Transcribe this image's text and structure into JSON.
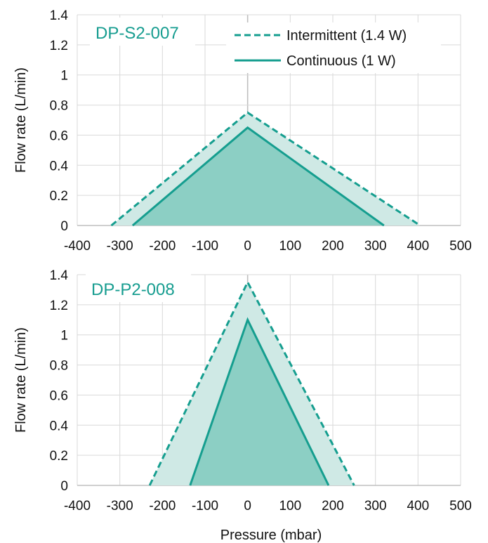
{
  "chart_data": [
    {
      "type": "area",
      "panel_label": "DP-S2-007",
      "ylabel": "Flow rate (L/min)",
      "xlabel": "",
      "xlim": [
        -400,
        500
      ],
      "ylim": [
        0,
        1.4
      ],
      "x_ticks": [
        "-400",
        "-300",
        "-200",
        "-100",
        "0",
        "100",
        "200",
        "300",
        "400",
        "500"
      ],
      "y_ticks": [
        "0",
        "0.2",
        "0.4",
        "0.6",
        "0.8",
        "1",
        "1.2",
        "1.4"
      ],
      "grid": true,
      "legend": {
        "placement": "top-right"
      },
      "series": [
        {
          "name": "Intermittent (1.4 W)",
          "style": "dashed",
          "points": [
            [
              -320,
              0
            ],
            [
              0,
              0.75
            ],
            [
              405,
              0
            ]
          ]
        },
        {
          "name": "Continuous (1 W)",
          "style": "solid",
          "points": [
            [
              -270,
              0
            ],
            [
              0,
              0.65
            ],
            [
              320,
              0
            ]
          ]
        }
      ]
    },
    {
      "type": "area",
      "panel_label": "DP-P2-008",
      "ylabel": "Flow rate (L/min)",
      "xlabel": "Pressure (mbar)",
      "xlim": [
        -400,
        500
      ],
      "ylim": [
        0,
        1.4
      ],
      "x_ticks": [
        "-400",
        "-300",
        "-200",
        "-100",
        "0",
        "100",
        "200",
        "300",
        "400",
        "500"
      ],
      "y_ticks": [
        "0",
        "0.2",
        "0.4",
        "0.6",
        "0.8",
        "1",
        "1.2",
        "1.4"
      ],
      "grid": true,
      "series": [
        {
          "name": "Intermittent (1.4 W)",
          "style": "dashed",
          "points": [
            [
              -230,
              0
            ],
            [
              0,
              1.35
            ],
            [
              250,
              0
            ]
          ]
        },
        {
          "name": "Continuous (1 W)",
          "style": "solid",
          "points": [
            [
              -135,
              0
            ],
            [
              0,
              1.1
            ],
            [
              190,
              0
            ]
          ]
        }
      ]
    }
  ],
  "colors": {
    "line": "#159e8f",
    "outer_fill": "#cfe9e5",
    "inner_fill": "#8ccfc4",
    "label": "#179d90",
    "grid": "#d9d9d9",
    "axis": "#bfbfbf"
  }
}
